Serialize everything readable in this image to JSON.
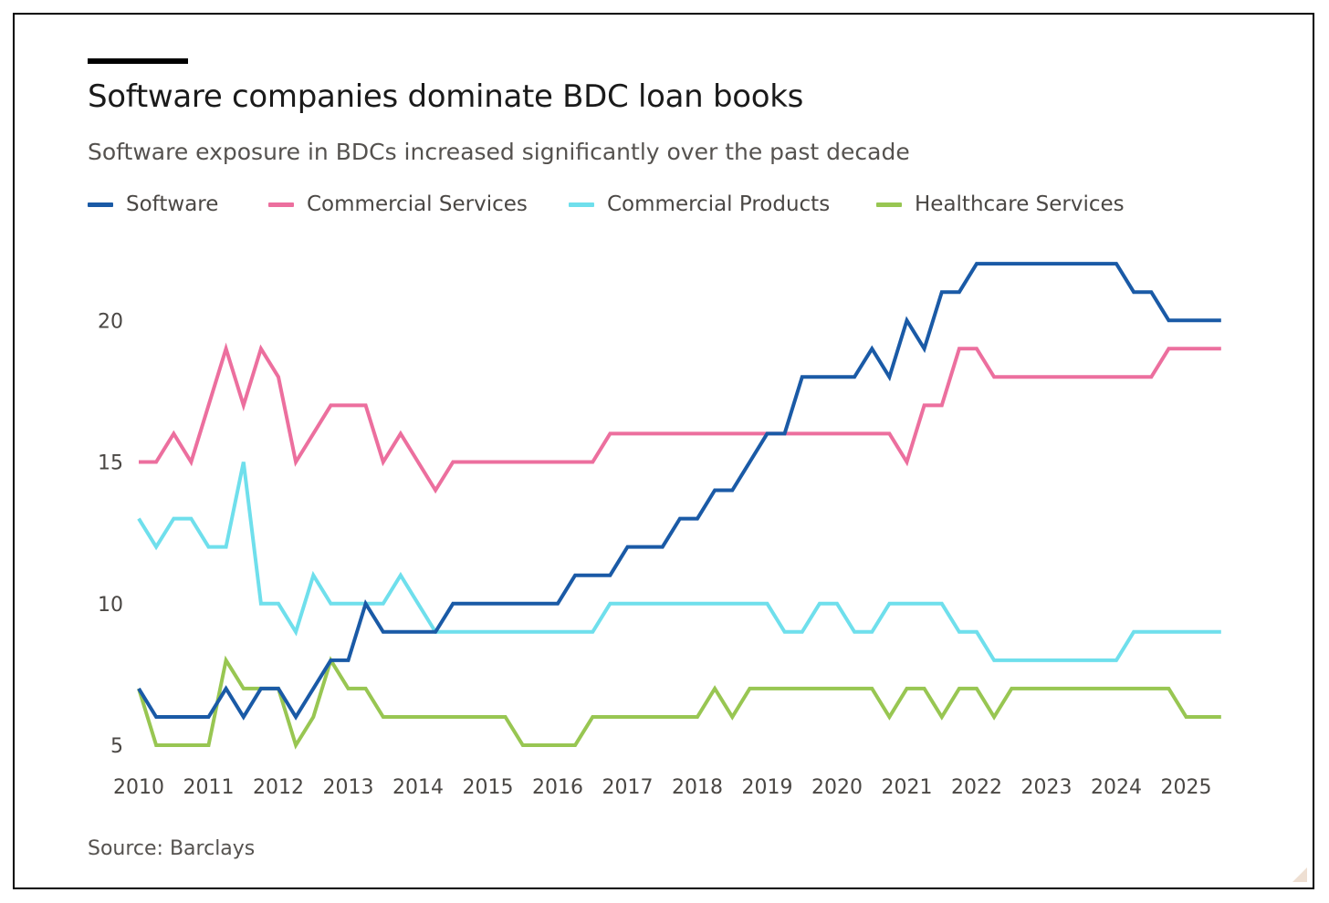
{
  "colors": {
    "software": "#1a5aa6",
    "commercial_services": "#ec6f9e",
    "commercial_products": "#6fdfec",
    "healthcare_services": "#98c652"
  },
  "header": {
    "title": "Software companies dominate BDC loan books",
    "subtitle": "Software exposure in BDCs increased significantly over the past decade"
  },
  "footer": {
    "source": "Source: Barclays"
  },
  "chart_data": {
    "type": "line",
    "title": "Software companies dominate BDC loan books",
    "subtitle": "Software exposure in BDCs increased significantly over the past decade",
    "xlabel": "",
    "ylabel": "",
    "x_ticks": [
      "2010",
      "2011",
      "2012",
      "2013",
      "2014",
      "2015",
      "2016",
      "2017",
      "2018",
      "2019",
      "2020",
      "2021",
      "2022",
      "2023",
      "2024",
      "2025"
    ],
    "y_ticks": [
      5,
      10,
      15,
      20
    ],
    "xlim": [
      2010,
      2025.5
    ],
    "ylim": [
      5,
      22.5
    ],
    "grid": false,
    "legend_placement": "top",
    "x": [
      2010.0,
      2010.25,
      2010.5,
      2010.75,
      2011.0,
      2011.25,
      2011.5,
      2011.75,
      2012.0,
      2012.25,
      2012.5,
      2012.75,
      2013.0,
      2013.25,
      2013.5,
      2013.75,
      2014.0,
      2014.25,
      2014.5,
      2014.75,
      2015.0,
      2015.25,
      2015.5,
      2015.75,
      2016.0,
      2016.25,
      2016.5,
      2016.75,
      2017.0,
      2017.25,
      2017.5,
      2017.75,
      2018.0,
      2018.25,
      2018.5,
      2018.75,
      2019.0,
      2019.25,
      2019.5,
      2019.75,
      2020.0,
      2020.25,
      2020.5,
      2020.75,
      2021.0,
      2021.25,
      2021.5,
      2021.75,
      2022.0,
      2022.25,
      2022.5,
      2022.75,
      2023.0,
      2023.25,
      2023.5,
      2023.75,
      2024.0,
      2024.25,
      2024.5,
      2024.75,
      2025.0,
      2025.25,
      2025.5
    ],
    "series": [
      {
        "name": "Software",
        "color": "#1a5aa6",
        "values": [
          7,
          6,
          6,
          6,
          6,
          7,
          6,
          7,
          7,
          6,
          7,
          8,
          8,
          10,
          9,
          9,
          9,
          9,
          10,
          10,
          10,
          10,
          10,
          10,
          10,
          11,
          11,
          11,
          12,
          12,
          12,
          13,
          13,
          14,
          14,
          15,
          16,
          16,
          18,
          18,
          18,
          18,
          19,
          18,
          20,
          19,
          21,
          21,
          22,
          22,
          22,
          22,
          22,
          22,
          22,
          22,
          22,
          21,
          21,
          20,
          20,
          20,
          20
        ]
      },
      {
        "name": "Commercial Services",
        "color": "#ec6f9e",
        "values": [
          15,
          15,
          16,
          15,
          17,
          19,
          17,
          19,
          18,
          15,
          16,
          17,
          17,
          17,
          15,
          16,
          15,
          14,
          15,
          15,
          15,
          15,
          15,
          15,
          15,
          15,
          15,
          16,
          16,
          16,
          16,
          16,
          16,
          16,
          16,
          16,
          16,
          16,
          16,
          16,
          16,
          16,
          16,
          16,
          15,
          17,
          17,
          19,
          19,
          18,
          18,
          18,
          18,
          18,
          18,
          18,
          18,
          18,
          18,
          19,
          19,
          19,
          19
        ]
      },
      {
        "name": "Commercial Products",
        "color": "#6fdfec",
        "values": [
          13,
          12,
          13,
          13,
          12,
          12,
          15,
          10,
          10,
          9,
          11,
          10,
          10,
          10,
          10,
          11,
          10,
          9,
          9,
          9,
          9,
          9,
          9,
          9,
          9,
          9,
          9,
          10,
          10,
          10,
          10,
          10,
          10,
          10,
          10,
          10,
          10,
          9,
          9,
          10,
          10,
          9,
          9,
          10,
          10,
          10,
          10,
          9,
          9,
          8,
          8,
          8,
          8,
          8,
          8,
          8,
          8,
          9,
          9,
          9,
          9,
          9,
          9
        ]
      },
      {
        "name": "Healthcare Services",
        "color": "#98c652",
        "values": [
          7,
          5,
          5,
          5,
          5,
          8,
          7,
          7,
          7,
          5,
          6,
          8,
          7,
          7,
          6,
          6,
          6,
          6,
          6,
          6,
          6,
          6,
          5,
          5,
          5,
          5,
          6,
          6,
          6,
          6,
          6,
          6,
          6,
          7,
          6,
          7,
          7,
          7,
          7,
          7,
          7,
          7,
          7,
          6,
          7,
          7,
          6,
          7,
          7,
          6,
          7,
          7,
          7,
          7,
          7,
          7,
          7,
          7,
          7,
          7,
          6,
          6,
          6
        ]
      }
    ]
  }
}
